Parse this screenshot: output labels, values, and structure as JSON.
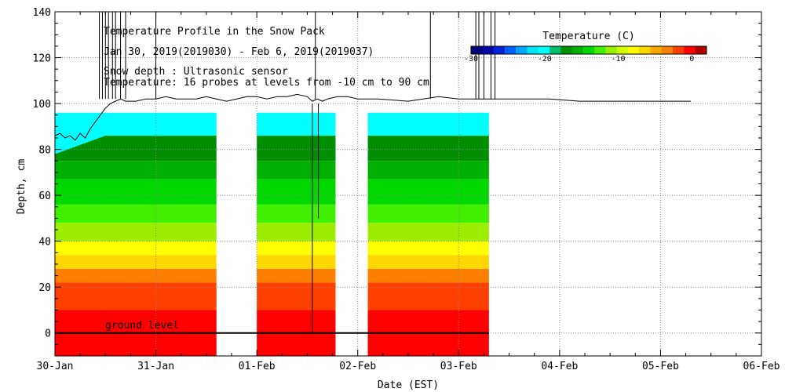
{
  "chart_data": {
    "type": "heatmap",
    "title_lines": [
      "Temperature Profile in the Snow Pack",
      "Jan 30, 2019(2019030) - Feb  6, 2019(2019037)",
      "Snow depth : Ultrasonic sensor",
      "Temperature: 16 probes at levels from -10 cm to 90 cm"
    ],
    "xlabel": "Date (EST)",
    "ylabel": "Depth, cm",
    "xlim": [
      0,
      7
    ],
    "ylim": [
      -10,
      140
    ],
    "x_tick_labels": [
      "30-Jan",
      "31-Jan",
      "01-Feb",
      "02-Feb",
      "03-Feb",
      "04-Feb",
      "05-Feb",
      "06-Feb"
    ],
    "y_tick_values": [
      0,
      20,
      40,
      60,
      80,
      100,
      120,
      140
    ],
    "grid": true,
    "annotation": "ground level",
    "colorbar": {
      "title": "Temperature (C)",
      "range": [
        -30,
        2
      ],
      "tick_values": [
        -30,
        -20,
        -10,
        0
      ],
      "tick_labels": [
        "-30",
        "-20",
        "-10",
        "0"
      ],
      "colors": [
        "#00007a",
        "#0000aa",
        "#0020e0",
        "#0060ff",
        "#00a8ff",
        "#00e4ff",
        "#00ffff",
        "#00c070",
        "#008f00",
        "#00b000",
        "#00d800",
        "#40f000",
        "#9cee00",
        "#d4ff00",
        "#ffff00",
        "#ffd700",
        "#ffa500",
        "#ff7f00",
        "#ff4000",
        "#ff0000",
        "#b00000"
      ]
    },
    "temperature_segments": [
      {
        "x_start": 0.0,
        "x_end": 1.6,
        "snow_top": 96
      },
      {
        "x_start": 2.0,
        "x_end": 2.78,
        "snow_top": 96
      },
      {
        "x_start": 3.1,
        "x_end": 4.3,
        "snow_top": 96
      }
    ],
    "temperature_bands": [
      {
        "from": -10,
        "to": 10,
        "color": "#ff0000"
      },
      {
        "from": 10,
        "to": 22,
        "color": "#ff4000"
      },
      {
        "from": 22,
        "to": 28,
        "color": "#ff7f00"
      },
      {
        "from": 28,
        "to": 34,
        "color": "#ffd700"
      },
      {
        "from": 34,
        "to": 40,
        "color": "#ffff00"
      },
      {
        "from": 40,
        "to": 48,
        "color": "#9cee00"
      },
      {
        "from": 48,
        "to": 56,
        "color": "#40f000"
      },
      {
        "from": 56,
        "to": 67,
        "color": "#00d800"
      },
      {
        "from": 67,
        "to": 75,
        "color": "#00b000"
      },
      {
        "from": 75,
        "to": 86,
        "color": "#008f00"
      },
      {
        "from": 86,
        "to": 96,
        "color": "#00ffff"
      }
    ],
    "snow_depth_series": {
      "name": "Snow depth",
      "x": [
        0.0,
        0.05,
        0.1,
        0.15,
        0.2,
        0.25,
        0.3,
        0.35,
        0.4,
        0.45,
        0.5,
        0.55,
        0.6,
        0.65,
        0.7,
        0.75,
        0.8,
        0.9,
        1.0,
        1.1,
        1.2,
        1.3,
        1.4,
        1.5,
        1.6,
        1.7,
        1.8,
        1.9,
        2.0,
        2.1,
        2.2,
        2.3,
        2.4,
        2.5,
        2.55,
        2.6,
        2.65,
        2.7,
        2.8,
        2.9,
        3.0,
        3.2,
        3.5,
        3.8,
        4.0,
        4.3,
        4.6,
        4.9,
        5.2,
        5.5,
        6.0,
        6.3
      ],
      "y": [
        86,
        87,
        85,
        86,
        84,
        87,
        85,
        89,
        92,
        95,
        98,
        100,
        101,
        102,
        101,
        101,
        101,
        102,
        102,
        103,
        102,
        102,
        102,
        103,
        102,
        101,
        102,
        103,
        103,
        102,
        103,
        103,
        104,
        103,
        101,
        102,
        101,
        102,
        103,
        103,
        102,
        102,
        101,
        103,
        102,
        102,
        102,
        102,
        101,
        101,
        101,
        101
      ]
    },
    "spikes_x": [
      0.44,
      0.47,
      0.5,
      0.53,
      0.57,
      0.6,
      0.65,
      0.7,
      1.0,
      2.58,
      3.72,
      4.17,
      4.2,
      4.25,
      4.32,
      4.36
    ],
    "early_cyan_region": {
      "x": [
        0.0,
        0.15,
        0.3,
        0.38,
        0.45,
        0.5
      ],
      "top": [
        89,
        88,
        86,
        90,
        94,
        96
      ]
    }
  }
}
